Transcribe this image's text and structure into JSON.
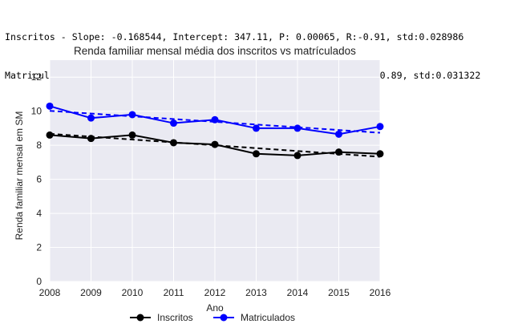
{
  "stats": {
    "line1": "Inscritos - Slope: -0.168544, Intercept: 347.11, P: 0.00065, R:-0.91, std:0.028986",
    "line2": "Matriculados - Slope: -0.160925, Intercept: 333.16, P: 0.00134, R:-0.89, std:0.031322"
  },
  "chart_data": {
    "type": "line",
    "title": "Renda familiar mensal média dos inscritos vs matrículados",
    "xlabel": "Ano",
    "ylabel": "Renda familiar mensal em SM",
    "x": [
      2008,
      2009,
      2010,
      2011,
      2012,
      2013,
      2014,
      2015,
      2016
    ],
    "xlim": [
      2008,
      2016
    ],
    "ylim": [
      0,
      13
    ],
    "yticks": [
      0,
      2,
      4,
      6,
      8,
      10,
      12
    ],
    "grid": true,
    "legend_position": "bottom",
    "series": [
      {
        "name": "Inscritos",
        "color": "#000000",
        "values": [
          8.6,
          8.4,
          8.6,
          8.15,
          8.05,
          7.5,
          7.4,
          7.6,
          7.5
        ],
        "trend": {
          "slope": -0.168544,
          "intercept": 347.11
        }
      },
      {
        "name": "Matriculados",
        "color": "#0000ff",
        "values": [
          10.3,
          9.6,
          9.8,
          9.3,
          9.5,
          9.0,
          9.0,
          8.65,
          9.1
        ],
        "trend": {
          "slope": -0.160925,
          "intercept": 333.16
        }
      }
    ]
  }
}
